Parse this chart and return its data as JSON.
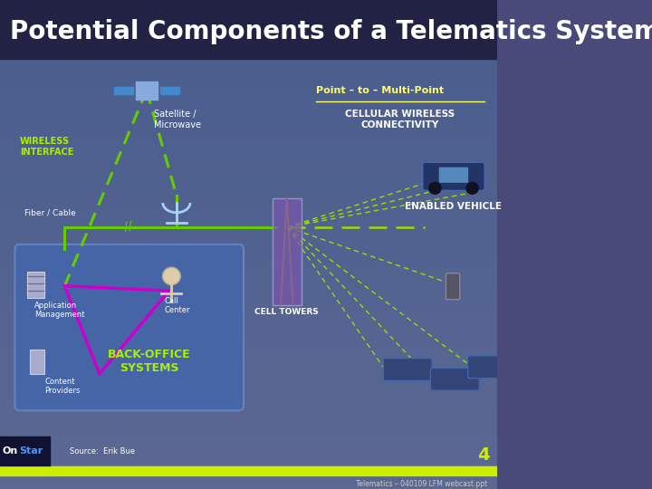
{
  "title": "Potential Components of a Telematics System",
  "title_color": "#ffffff",
  "title_fontsize": 20,
  "bg_color": "#4a4a7a",
  "labels": {
    "wireless_interface": "WIRELESS\nINTERFACE",
    "satellite_microwave": "Satellite /\nMicrowave",
    "fiber_cable": "Fiber / Cable",
    "point_to_multi": "Point – to – Multi-Point",
    "cellular_wireless": "CELLULAR WIRELESS\nCONNECTIVITY",
    "cell_towers": "CELL TOWERS",
    "enabled_vehicle": "ENABLED VEHICLE",
    "application_mgmt": "Application\nManagement",
    "call_center": "Call\nCenter",
    "content_providers": "Content\nProviders",
    "back_office": "BACK-OFFICE\nSYSTEMS",
    "source": "Source:  Erik Bue",
    "page_num": "4",
    "footer": "Telematics – 040109 LFM webcast.ppt"
  },
  "colors": {
    "green_line": "#66cc00",
    "green_dashed": "#99dd00",
    "magenta_line": "#cc00cc",
    "white_text": "#ffffff",
    "lime_green": "#aaee00",
    "footer_bar": "#ccee00",
    "point_to_multi_color": "#ffff66"
  }
}
